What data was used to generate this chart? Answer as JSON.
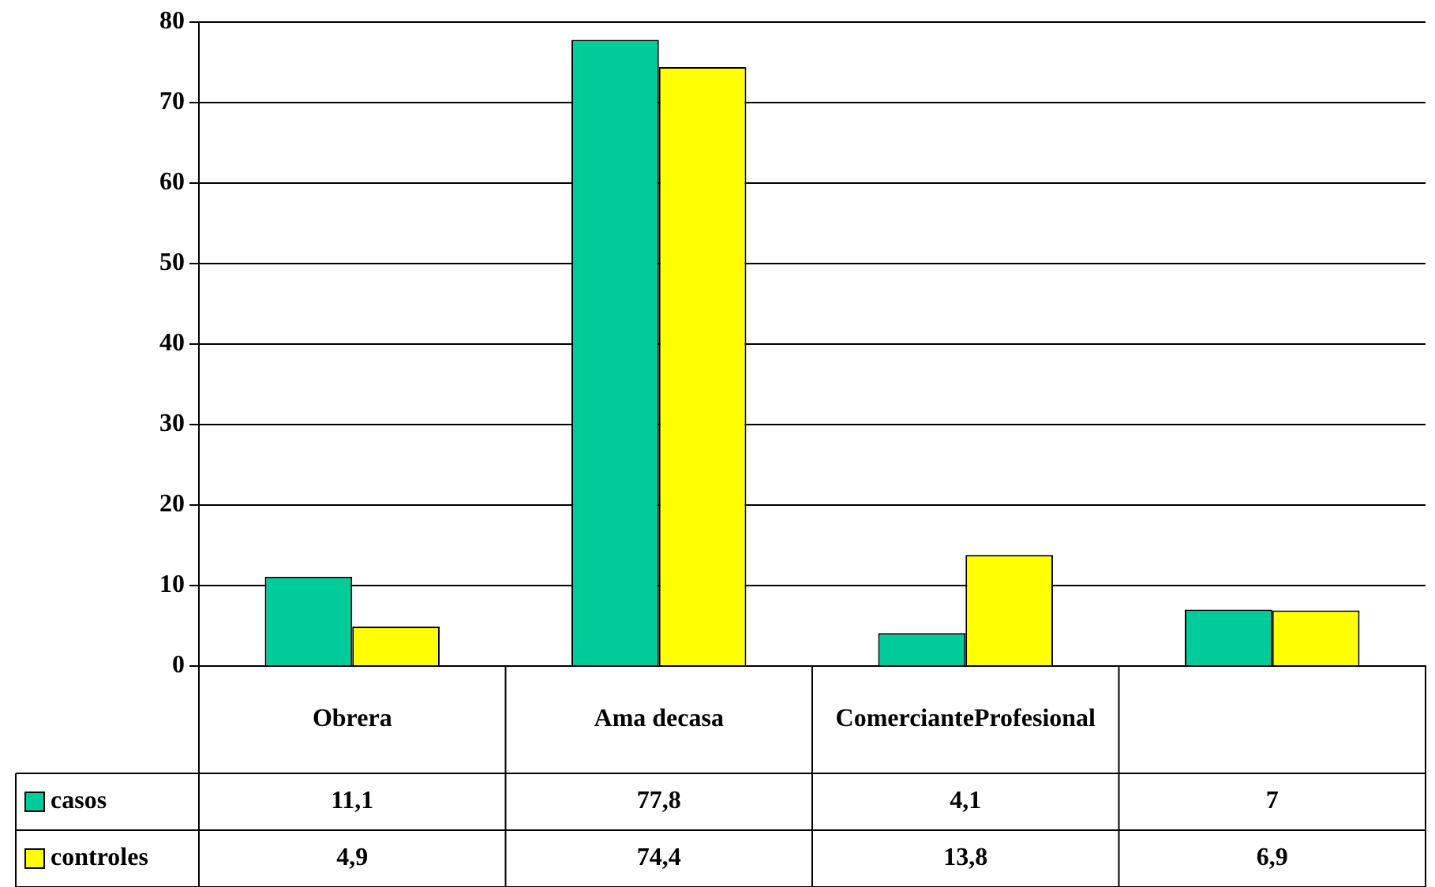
{
  "chart_data": {
    "type": "bar",
    "categories": [
      "Obrera",
      "Ama decasa",
      "ComercianteProfesional",
      null
    ],
    "series": [
      {
        "name": "casos",
        "color": "#00cc99",
        "values": [
          11.1,
          77.8,
          4.1,
          7
        ],
        "value_labels": [
          "11,1",
          "77,8",
          "4,1",
          "7"
        ]
      },
      {
        "name": "controles",
        "color": "#ffff00",
        "values": [
          4.9,
          74.4,
          13.8,
          6.9
        ],
        "value_labels": [
          "4,9",
          "74,4",
          "13,8",
          "6,9"
        ]
      }
    ],
    "ylim": [
      0,
      80
    ],
    "yticks": [
      0,
      10,
      20,
      30,
      40,
      50,
      60,
      70,
      80
    ],
    "grid": "y",
    "legend": "bottom"
  }
}
